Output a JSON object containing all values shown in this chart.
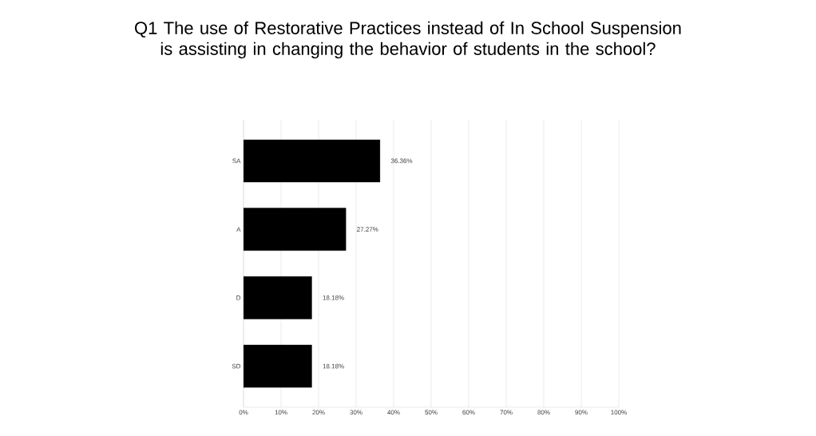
{
  "chart_data": {
    "type": "bar",
    "orientation": "horizontal",
    "title": "Q1 The use of Restorative Practices instead of In School Suspension is assisting in changing the behavior of students in the school?",
    "categories": [
      "SA",
      "A",
      "D",
      "SD"
    ],
    "values": [
      36.36,
      27.27,
      18.18,
      18.18
    ],
    "value_labels": [
      "36.36%",
      "27.27%",
      "18.18%",
      "18.18%"
    ],
    "color": "#000000",
    "xlim": [
      0,
      100
    ],
    "xticks": [
      {
        "value": 0,
        "label": "0%"
      },
      {
        "value": 10,
        "label": "10%"
      },
      {
        "value": 20,
        "label": "20%"
      },
      {
        "value": 30,
        "label": "30%"
      },
      {
        "value": 40,
        "label": "40%"
      },
      {
        "value": 50,
        "label": "50%"
      },
      {
        "value": 60,
        "label": "60%"
      },
      {
        "value": 70,
        "label": "70%"
      },
      {
        "value": 80,
        "label": "80%"
      },
      {
        "value": 90,
        "label": "90%"
      },
      {
        "value": 100,
        "label": "100%"
      }
    ],
    "grid": "x"
  }
}
